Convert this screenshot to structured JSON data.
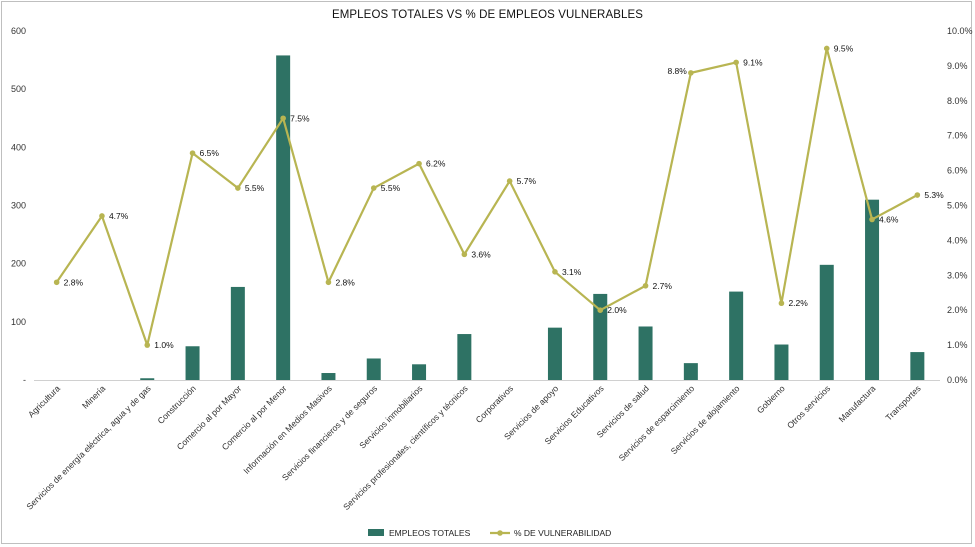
{
  "chart_data": {
    "type": "bar",
    "title": "EMPLEOS TOTALES VS % DE EMPLEOS VULNERABLES",
    "categories": [
      "Agricultura",
      "Minería",
      "Servicios de energía eléctrica, agua y de gas",
      "Construcción",
      "Comercio al por Mayor",
      "Comercio al por Menor",
      "Información en Medios Masivos",
      "Servicios financieros y de seguros",
      "Servicios inmobiliarios",
      "Servicios profesionales, científicos y técnicos",
      "Corporativos",
      "Servicios de apoyo",
      "Servicios Educativos",
      "Servicios de salud",
      "Servicios de esparcimiento",
      "Servicios de alojamiento",
      "Gobierno",
      "Otros servicios",
      "Manufactura",
      "Transportes"
    ],
    "series": [
      {
        "name": "EMPLEOS TOTALES",
        "type": "bar",
        "axis": "left",
        "color": "#2e7264",
        "values": [
          0,
          0,
          3,
          58,
          160,
          558,
          12,
          37,
          27,
          79,
          0,
          90,
          148,
          92,
          29,
          152,
          61,
          198,
          310,
          48
        ]
      },
      {
        "name": "% DE VULNERABILIDAD",
        "type": "line",
        "axis": "right",
        "color": "#b8b552",
        "values": [
          2.8,
          4.7,
          1.0,
          6.5,
          5.5,
          7.5,
          2.8,
          5.5,
          6.2,
          3.6,
          5.7,
          3.1,
          2.0,
          2.7,
          8.8,
          9.1,
          2.2,
          9.5,
          4.6,
          5.3
        ],
        "labels": [
          "2.8%",
          "4.7%",
          "1.0%",
          "6.5%",
          "5.5%",
          "7.5%",
          "2.8%",
          "5.5%",
          "6.2%",
          "3.6%",
          "5.7%",
          "3.1%",
          "2.0%",
          "2.7%",
          "8.8%",
          "9.1%",
          "2.2%",
          "9.5%",
          "4.6%",
          "5.3%"
        ]
      }
    ],
    "y_left": {
      "min": 0,
      "max": 600,
      "ticks": [
        0,
        100,
        200,
        300,
        400,
        500,
        600
      ],
      "tick_labels": [
        "-",
        "100",
        "200",
        "300",
        "400",
        "500",
        "600"
      ]
    },
    "y_right": {
      "min": 0,
      "max": 10,
      "ticks": [
        0,
        1,
        2,
        3,
        4,
        5,
        6,
        7,
        8,
        9,
        10
      ],
      "tick_labels": [
        "0.0%",
        "1.0%",
        "2.0%",
        "3.0%",
        "4.0%",
        "5.0%",
        "6.0%",
        "7.0%",
        "8.0%",
        "9.0%",
        "10.0%"
      ]
    },
    "grid": false,
    "legend_position": "bottom"
  }
}
